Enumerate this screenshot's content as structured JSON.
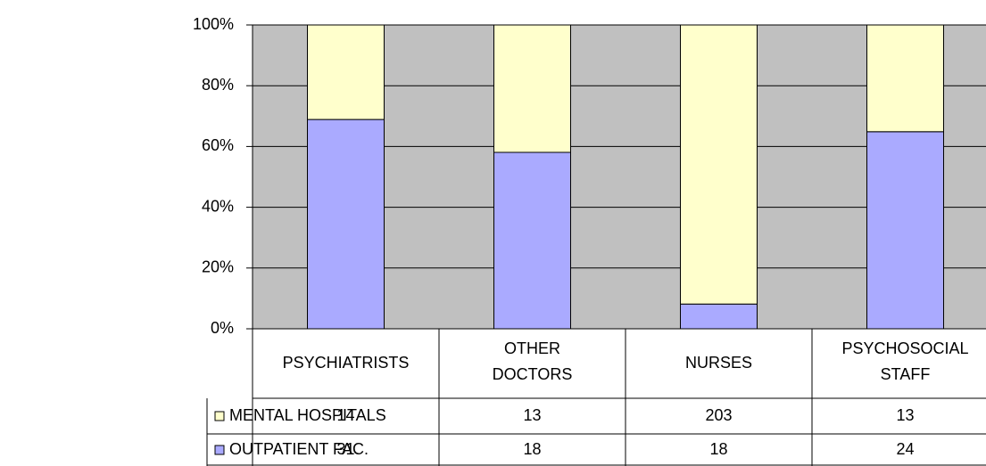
{
  "chart_data": {
    "type": "bar",
    "stacked": "percent",
    "categories": [
      "PSYCHIATRISTS",
      "OTHER DOCTORS",
      "NURSES",
      "PSYCHOSOCIAL STAFF"
    ],
    "series": [
      {
        "name": "MENTAL HOSPITALS",
        "color": "#ffffcc",
        "values": [
          14,
          13,
          203,
          13
        ]
      },
      {
        "name": "OUTPATIENT FAC.",
        "color": "#aaaaff",
        "values": [
          31,
          18,
          18,
          24
        ]
      }
    ],
    "ylim": [
      0,
      100
    ],
    "yticks": [
      {
        "value": 0,
        "label": "0%"
      },
      {
        "value": 20,
        "label": "20%"
      },
      {
        "value": 40,
        "label": "40%"
      },
      {
        "value": 60,
        "label": "60%"
      },
      {
        "value": 80,
        "label": "80%"
      },
      {
        "value": 100,
        "label": "100%"
      }
    ],
    "grid": true,
    "plot_background": "#c0c0c0"
  }
}
